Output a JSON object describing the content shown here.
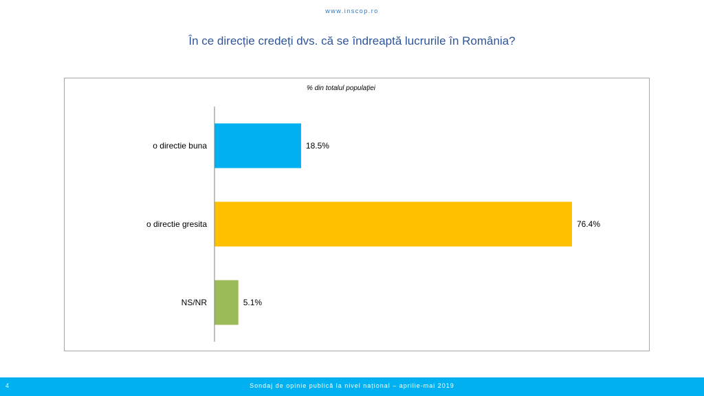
{
  "header": {
    "site_url": "www.inscop.ro",
    "title": "În ce direcție credeți dvs. că se îndreaptă lucrurile în România?"
  },
  "footer": {
    "page_number": "4",
    "caption": "Sondaj de opinie publică la nivel național – aprilie-mai 2019"
  },
  "chart_data": {
    "type": "bar",
    "orientation": "horizontal",
    "subtitle": "% din totalul populației",
    "categories": [
      "o directie buna",
      "o directie gresita",
      "NS/NR"
    ],
    "values": [
      18.5,
      76.4,
      5.1
    ],
    "value_labels": [
      "18.5%",
      "76.4%",
      "5.1%"
    ],
    "colors": [
      "#00b0f0",
      "#ffc000",
      "#9bbb59"
    ],
    "xlim": [
      0,
      76.4
    ],
    "grid": false,
    "legend": "none"
  }
}
